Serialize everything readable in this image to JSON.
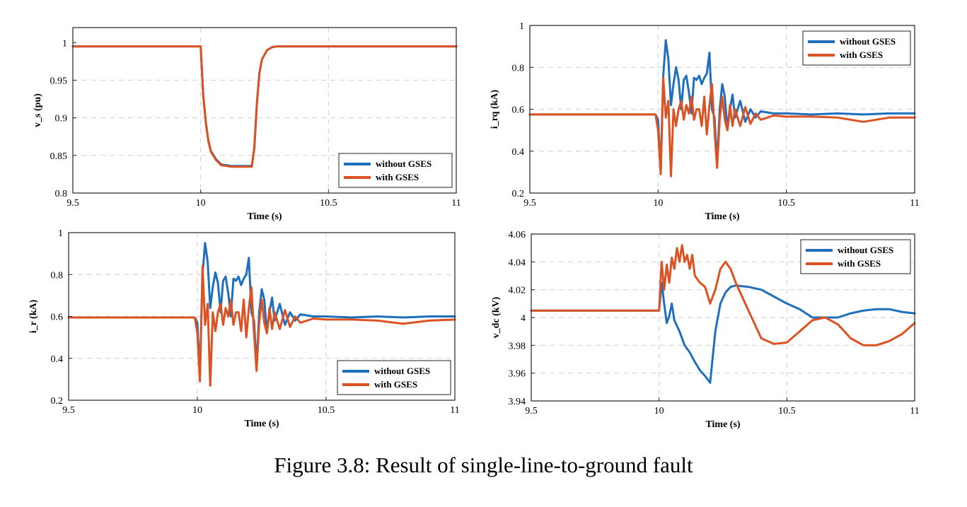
{
  "caption": "Figure 3.8: Result of single-line-to-ground fault",
  "colors": {
    "without": "#1f6fbd",
    "with": "#db5323"
  },
  "chart_data": [
    {
      "id": "vs",
      "type": "line",
      "title": "",
      "xlabel": "Time (s)",
      "ylabel": "v_s (pu)",
      "xlim": [
        9.5,
        11
      ],
      "ylim": [
        0.8,
        1.02
      ],
      "xticks": [
        9.5,
        10,
        10.5,
        11
      ],
      "xtick_labels": [
        "9.5",
        "10",
        "10.5",
        "11"
      ],
      "yticks": [
        0.8,
        0.85,
        0.9,
        0.95,
        1
      ],
      "ytick_labels": [
        "0.8",
        "0.85",
        "0.9",
        "0.95",
        "1"
      ],
      "grid": true,
      "legend": "bottom-right",
      "series": [
        {
          "name": "without GSES",
          "color": "#1f6fbd",
          "x": [
            9.5,
            10,
            10.01,
            10.02,
            10.03,
            10.04,
            10.06,
            10.08,
            10.1,
            10.12,
            10.14,
            10.16,
            10.18,
            10.2,
            10.21,
            10.22,
            10.23,
            10.24,
            10.26,
            10.28,
            10.3,
            11
          ],
          "y": [
            0.995,
            0.995,
            0.93,
            0.895,
            0.87,
            0.856,
            0.845,
            0.838,
            0.837,
            0.836,
            0.836,
            0.836,
            0.836,
            0.836,
            0.86,
            0.92,
            0.96,
            0.978,
            0.99,
            0.994,
            0.995,
            0.995
          ]
        },
        {
          "name": "with GSES",
          "color": "#db5323",
          "x": [
            9.5,
            10,
            10.01,
            10.02,
            10.03,
            10.04,
            10.06,
            10.08,
            10.1,
            10.12,
            10.14,
            10.16,
            10.18,
            10.2,
            10.21,
            10.22,
            10.23,
            10.24,
            10.26,
            10.28,
            10.3,
            11
          ],
          "y": [
            0.995,
            0.995,
            0.93,
            0.894,
            0.869,
            0.855,
            0.844,
            0.837,
            0.836,
            0.835,
            0.835,
            0.835,
            0.835,
            0.835,
            0.859,
            0.92,
            0.96,
            0.978,
            0.99,
            0.994,
            0.995,
            0.995
          ]
        }
      ]
    },
    {
      "id": "irq",
      "type": "line",
      "title": "",
      "xlabel": "Time (s)",
      "ylabel": "i_rq (kA)",
      "xlim": [
        9.5,
        11
      ],
      "ylim": [
        0.2,
        1
      ],
      "xticks": [
        9.5,
        10,
        10.5,
        11
      ],
      "xtick_labels": [
        "9.5",
        "10",
        "10.5",
        "11"
      ],
      "yticks": [
        0.2,
        0.4,
        0.6,
        0.8,
        1
      ],
      "ytick_labels": [
        "0.2",
        "0.4",
        "0.6",
        "0.8",
        "1"
      ],
      "grid": true,
      "legend": "top-right",
      "series": [
        {
          "name": "without GSES",
          "color": "#1f6fbd",
          "x": [
            9.5,
            9.99,
            10.0,
            10.01,
            10.02,
            10.03,
            10.04,
            10.05,
            10.06,
            10.07,
            10.08,
            10.09,
            10.1,
            10.11,
            10.12,
            10.13,
            10.14,
            10.15,
            10.16,
            10.17,
            10.18,
            10.19,
            10.2,
            10.21,
            10.22,
            10.23,
            10.24,
            10.25,
            10.26,
            10.27,
            10.28,
            10.29,
            10.3,
            10.32,
            10.34,
            10.36,
            10.38,
            10.4,
            10.45,
            10.5,
            10.6,
            10.7,
            10.8,
            10.9,
            11
          ],
          "y": [
            0.575,
            0.575,
            0.55,
            0.3,
            0.76,
            0.93,
            0.84,
            0.62,
            0.72,
            0.8,
            0.74,
            0.6,
            0.74,
            0.76,
            0.68,
            0.58,
            0.75,
            0.74,
            0.76,
            0.72,
            0.75,
            0.77,
            0.87,
            0.6,
            0.56,
            0.34,
            0.6,
            0.72,
            0.66,
            0.5,
            0.6,
            0.67,
            0.56,
            0.64,
            0.54,
            0.6,
            0.56,
            0.59,
            0.58,
            0.58,
            0.575,
            0.58,
            0.575,
            0.58,
            0.58
          ]
        },
        {
          "name": "with GSES",
          "color": "#db5323",
          "x": [
            9.5,
            9.99,
            10.0,
            10.01,
            10.02,
            10.03,
            10.04,
            10.05,
            10.06,
            10.07,
            10.08,
            10.09,
            10.1,
            10.11,
            10.12,
            10.13,
            10.14,
            10.15,
            10.16,
            10.17,
            10.18,
            10.19,
            10.2,
            10.21,
            10.22,
            10.23,
            10.24,
            10.25,
            10.26,
            10.27,
            10.28,
            10.29,
            10.3,
            10.32,
            10.34,
            10.36,
            10.38,
            10.4,
            10.45,
            10.5,
            10.6,
            10.7,
            10.8,
            10.9,
            11
          ],
          "y": [
            0.575,
            0.575,
            0.5,
            0.29,
            0.75,
            0.56,
            0.64,
            0.28,
            0.6,
            0.52,
            0.6,
            0.64,
            0.55,
            0.62,
            0.58,
            0.66,
            0.55,
            0.6,
            0.6,
            0.52,
            0.66,
            0.48,
            0.62,
            0.72,
            0.5,
            0.32,
            0.55,
            0.66,
            0.55,
            0.5,
            0.62,
            0.52,
            0.6,
            0.52,
            0.61,
            0.53,
            0.58,
            0.55,
            0.57,
            0.565,
            0.565,
            0.56,
            0.54,
            0.56,
            0.56
          ]
        }
      ]
    },
    {
      "id": "ir",
      "type": "line",
      "title": "",
      "xlabel": "Time (s)",
      "ylabel": "i_r (kA)",
      "xlim": [
        9.5,
        11
      ],
      "ylim": [
        0.2,
        1
      ],
      "xticks": [
        9.5,
        10,
        10.5,
        11
      ],
      "xtick_labels": [
        "9.5",
        "10",
        "10.5",
        "11"
      ],
      "yticks": [
        0.2,
        0.4,
        0.6,
        0.8,
        1
      ],
      "ytick_labels": [
        "0.2",
        "0.4",
        "0.6",
        "0.8",
        "1"
      ],
      "grid": true,
      "legend": "bottom-right",
      "series": [
        {
          "name": "without GSES",
          "color": "#1f6fbd",
          "x": [
            9.5,
            9.99,
            10.0,
            10.01,
            10.02,
            10.03,
            10.04,
            10.05,
            10.06,
            10.07,
            10.08,
            10.09,
            10.1,
            10.11,
            10.12,
            10.13,
            10.14,
            10.15,
            10.16,
            10.17,
            10.18,
            10.19,
            10.2,
            10.21,
            10.22,
            10.23,
            10.24,
            10.25,
            10.26,
            10.27,
            10.28,
            10.29,
            10.3,
            10.32,
            10.34,
            10.36,
            10.38,
            10.4,
            10.45,
            10.5,
            10.6,
            10.7,
            10.8,
            10.9,
            11
          ],
          "y": [
            0.595,
            0.595,
            0.57,
            0.32,
            0.8,
            0.95,
            0.86,
            0.64,
            0.74,
            0.81,
            0.76,
            0.62,
            0.77,
            0.79,
            0.71,
            0.6,
            0.78,
            0.77,
            0.79,
            0.75,
            0.78,
            0.8,
            0.88,
            0.62,
            0.58,
            0.36,
            0.62,
            0.73,
            0.68,
            0.52,
            0.62,
            0.69,
            0.58,
            0.66,
            0.56,
            0.62,
            0.58,
            0.61,
            0.6,
            0.6,
            0.595,
            0.6,
            0.595,
            0.6,
            0.6
          ]
        },
        {
          "name": "with GSES",
          "color": "#db5323",
          "x": [
            9.5,
            9.99,
            10.0,
            10.01,
            10.02,
            10.03,
            10.04,
            10.05,
            10.06,
            10.07,
            10.08,
            10.09,
            10.1,
            10.11,
            10.12,
            10.13,
            10.14,
            10.15,
            10.16,
            10.17,
            10.18,
            10.19,
            10.2,
            10.21,
            10.22,
            10.23,
            10.24,
            10.25,
            10.26,
            10.27,
            10.28,
            10.29,
            10.3,
            10.32,
            10.34,
            10.36,
            10.38,
            10.4,
            10.45,
            10.5,
            10.6,
            10.7,
            10.8,
            10.9,
            11
          ],
          "y": [
            0.595,
            0.595,
            0.52,
            0.29,
            0.84,
            0.56,
            0.66,
            0.27,
            0.62,
            0.53,
            0.62,
            0.66,
            0.56,
            0.64,
            0.6,
            0.68,
            0.56,
            0.62,
            0.62,
            0.53,
            0.68,
            0.5,
            0.64,
            0.74,
            0.52,
            0.34,
            0.57,
            0.68,
            0.57,
            0.52,
            0.64,
            0.54,
            0.62,
            0.54,
            0.63,
            0.55,
            0.6,
            0.57,
            0.59,
            0.585,
            0.585,
            0.58,
            0.565,
            0.58,
            0.585
          ]
        }
      ]
    },
    {
      "id": "vdc",
      "type": "line",
      "title": "",
      "xlabel": "Time (s)",
      "ylabel": "v_dc (kV)",
      "xlim": [
        9.5,
        11
      ],
      "ylim": [
        3.94,
        4.06
      ],
      "xticks": [
        9.5,
        10,
        10.5,
        11
      ],
      "xtick_labels": [
        "9.5",
        "10",
        "10.5",
        "11"
      ],
      "yticks": [
        3.94,
        3.96,
        3.98,
        4,
        4.02,
        4.04,
        4.06
      ],
      "ytick_labels": [
        "3.94",
        "3.96",
        "3.98",
        "4",
        "4.02",
        "4.04",
        "4.06"
      ],
      "grid": true,
      "legend": "top-right",
      "series": [
        {
          "name": "without GSES",
          "color": "#1f6fbd",
          "x": [
            9.5,
            9.99,
            10.0,
            10.01,
            10.02,
            10.03,
            10.04,
            10.05,
            10.06,
            10.08,
            10.1,
            10.12,
            10.14,
            10.16,
            10.18,
            10.2,
            10.22,
            10.24,
            10.26,
            10.28,
            10.3,
            10.35,
            10.4,
            10.45,
            10.5,
            10.55,
            10.6,
            10.65,
            10.7,
            10.75,
            10.8,
            10.85,
            10.9,
            10.95,
            11
          ],
          "y": [
            4.005,
            4.005,
            4.005,
            4.025,
            4.01,
            3.996,
            4.001,
            4.01,
            3.998,
            3.99,
            3.98,
            3.975,
            3.968,
            3.962,
            3.958,
            3.953,
            3.99,
            4.01,
            4.018,
            4.022,
            4.023,
            4.022,
            4.02,
            4.015,
            4.01,
            4.006,
            4.0,
            4.0,
            4.0,
            4.003,
            4.005,
            4.006,
            4.006,
            4.004,
            4.003
          ]
        },
        {
          "name": "with GSES",
          "color": "#db5323",
          "x": [
            9.5,
            9.99,
            10.0,
            10.01,
            10.02,
            10.03,
            10.04,
            10.05,
            10.06,
            10.07,
            10.08,
            10.09,
            10.1,
            10.11,
            10.12,
            10.13,
            10.14,
            10.16,
            10.18,
            10.2,
            10.22,
            10.24,
            10.26,
            10.28,
            10.3,
            10.35,
            10.4,
            10.45,
            10.5,
            10.55,
            10.6,
            10.65,
            10.7,
            10.75,
            10.8,
            10.85,
            10.9,
            10.95,
            11
          ],
          "y": [
            4.005,
            4.005,
            4.005,
            4.04,
            4.02,
            4.038,
            4.025,
            4.043,
            4.035,
            4.05,
            4.04,
            4.052,
            4.04,
            4.045,
            4.035,
            4.045,
            4.03,
            4.025,
            4.022,
            4.01,
            4.02,
            4.035,
            4.04,
            4.035,
            4.025,
            4.005,
            3.985,
            3.981,
            3.982,
            3.99,
            3.998,
            4.0,
            3.995,
            3.985,
            3.98,
            3.98,
            3.983,
            3.988,
            3.996
          ]
        }
      ]
    }
  ]
}
